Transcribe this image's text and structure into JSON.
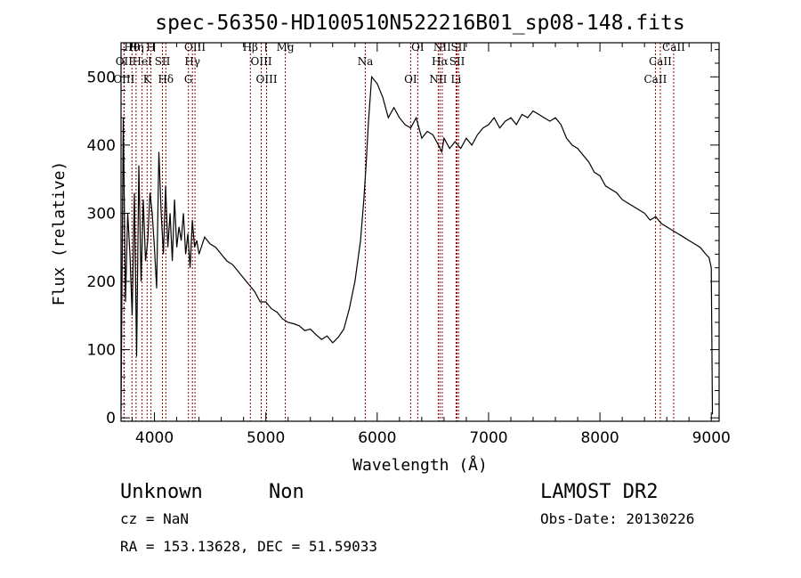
{
  "chart_data": {
    "type": "line",
    "title": "spec-56350-HD100510N522216B01_sp08-148.fits",
    "xlabel": "Wavelength (Å)",
    "ylabel": "Flux (relative)",
    "xlim": [
      3700,
      9070
    ],
    "ylim": [
      -5,
      550
    ],
    "xticks": [
      4000,
      5000,
      6000,
      7000,
      8000,
      9000
    ],
    "yticks": [
      0,
      100,
      200,
      300,
      400,
      500
    ],
    "grid": false,
    "series": [
      {
        "x": [
          3700,
          3720,
          3740,
          3760,
          3780,
          3800,
          3820,
          3840,
          3860,
          3880,
          3900,
          3920,
          3940,
          3960,
          3980,
          4000,
          4020,
          4040,
          4060,
          4080,
          4100,
          4120,
          4140,
          4160,
          4180,
          4200,
          4220,
          4240,
          4260,
          4280,
          4300,
          4320,
          4340,
          4360,
          4380,
          4400,
          4450,
          4500,
          4550,
          4600,
          4650,
          4700,
          4750,
          4800,
          4850,
          4900,
          4950,
          5000,
          5050,
          5100,
          5150,
          5200,
          5250,
          5300,
          5350,
          5400,
          5450,
          5500,
          5550,
          5600,
          5650,
          5700,
          5750,
          5800,
          5850,
          5880,
          5900,
          5920,
          5950,
          6000,
          6050,
          6100,
          6150,
          6200,
          6250,
          6300,
          6350,
          6400,
          6450,
          6500,
          6550,
          6580,
          6600,
          6650,
          6700,
          6750,
          6800,
          6850,
          6900,
          6950,
          7000,
          7050,
          7100,
          7150,
          7200,
          7250,
          7300,
          7350,
          7400,
          7450,
          7500,
          7550,
          7600,
          7650,
          7700,
          7750,
          7800,
          7850,
          7900,
          7950,
          8000,
          8050,
          8100,
          8150,
          8200,
          8250,
          8300,
          8350,
          8400,
          8450,
          8500,
          8550,
          8600,
          8650,
          8700,
          8750,
          8800,
          8850,
          8900,
          8950,
          8980,
          9000,
          9010
        ],
        "y": [
          10,
          440,
          170,
          300,
          240,
          150,
          330,
          90,
          370,
          200,
          320,
          230,
          260,
          330,
          300,
          250,
          190,
          390,
          300,
          240,
          340,
          250,
          300,
          230,
          320,
          250,
          280,
          260,
          300,
          240,
          270,
          220,
          290,
          250,
          260,
          240,
          265,
          255,
          250,
          240,
          230,
          225,
          215,
          205,
          195,
          185,
          170,
          170,
          160,
          155,
          145,
          140,
          138,
          135,
          128,
          130,
          122,
          115,
          120,
          110,
          118,
          130,
          160,
          200,
          260,
          320,
          370,
          430,
          500,
          490,
          470,
          440,
          455,
          440,
          430,
          425,
          440,
          410,
          420,
          415,
          400,
          390,
          410,
          395,
          405,
          395,
          410,
          400,
          415,
          425,
          430,
          440,
          425,
          435,
          440,
          430,
          445,
          440,
          450,
          445,
          440,
          435,
          440,
          430,
          410,
          400,
          395,
          385,
          375,
          360,
          355,
          340,
          335,
          330,
          320,
          315,
          310,
          305,
          300,
          290,
          295,
          285,
          280,
          275,
          270,
          265,
          260,
          255,
          250,
          240,
          235,
          220,
          5
        ]
      }
    ],
    "lines": [
      {
        "label": "Hθ",
        "x": 3798
      },
      {
        "label": "OII",
        "x": 3727
      },
      {
        "label": "OIII",
        "x": 3727
      },
      {
        "label": "Hη",
        "x": 3835
      },
      {
        "label": "HeI",
        "x": 3889
      },
      {
        "label": "K",
        "x": 3934
      },
      {
        "label": "H",
        "x": 3969
      },
      {
        "label": "SII",
        "x": 4072
      },
      {
        "label": "Hδ",
        "x": 4102
      },
      {
        "label": "OIII",
        "x": 4364
      },
      {
        "label": "Hγ",
        "x": 4341
      },
      {
        "label": "G",
        "x": 4305
      },
      {
        "label": "Hβ",
        "x": 4861
      },
      {
        "label": "OIII",
        "x": 4959
      },
      {
        "label": "OIII",
        "x": 5007
      },
      {
        "label": "Mg",
        "x": 5175
      },
      {
        "label": "Na",
        "x": 5893
      },
      {
        "label": "OI",
        "x": 6300
      },
      {
        "label": "OI",
        "x": 6364
      },
      {
        "label": "Hα",
        "x": 6563
      },
      {
        "label": "NII",
        "x": 6548
      },
      {
        "label": "NII",
        "x": 6584
      },
      {
        "label": "SII",
        "x": 6717
      },
      {
        "label": "Li",
        "x": 6708
      },
      {
        "label": "SII",
        "x": 6731
      },
      {
        "label": "CaII",
        "x": 8542
      },
      {
        "label": "CaII",
        "x": 8498
      },
      {
        "label": "CaII",
        "x": 8662
      }
    ]
  },
  "info": {
    "object_class": "Unknown",
    "object_subclass": "Non",
    "cz": "cz = NaN",
    "radec": "RA = 153.13628, DEC =  51.59033",
    "survey": "LAMOST DR2",
    "obs_date": "Obs-Date: 20130226"
  },
  "colors": {
    "spectrum": "#000000",
    "line_marker": "#8b0000"
  }
}
